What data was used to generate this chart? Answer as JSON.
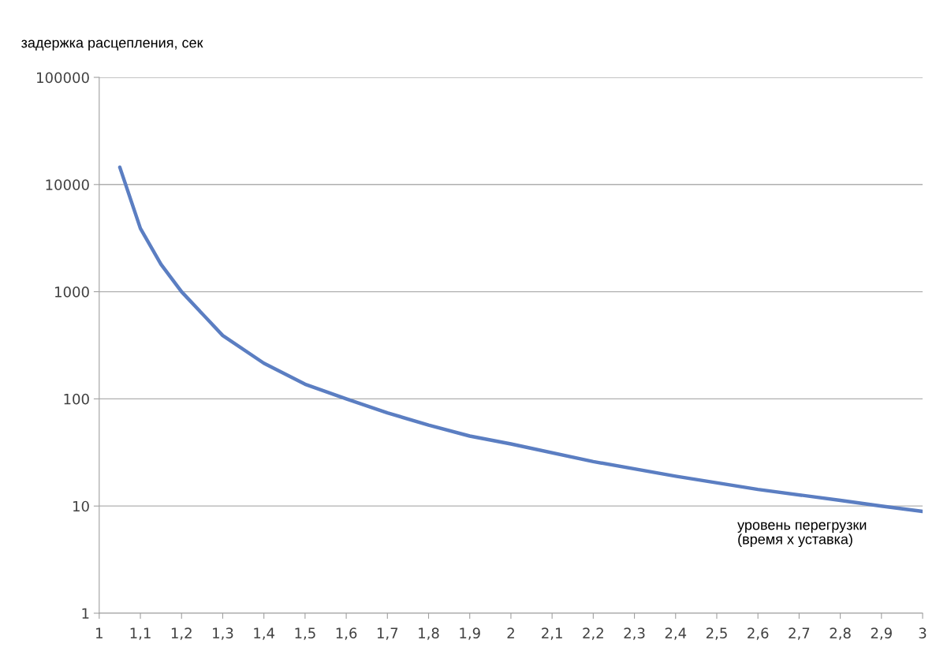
{
  "chart_data": {
    "type": "line",
    "ylabel": "задержка расцепления, сек",
    "xlabel": "уровень перегрузки\n(время х уставка)",
    "x": [
      1.05,
      1.1,
      1.15,
      1.2,
      1.3,
      1.4,
      1.5,
      1.6,
      1.7,
      1.8,
      1.9,
      2,
      2.2,
      2.4,
      2.6,
      2.8,
      2.9,
      3
    ],
    "series": [
      {
        "color": "#5b7ec2",
        "values": [
          14500,
          3900,
          1800,
          1000,
          390,
          215,
          137,
          100,
          74,
          57,
          45,
          38,
          26,
          19,
          14.3,
          11.3,
          10,
          8.9
        ]
      }
    ],
    "log": "y",
    "ylim": [
      1,
      100000
    ],
    "yticks": [
      1,
      10,
      100,
      1000,
      10000,
      100000
    ],
    "xlim": [
      1,
      3
    ],
    "xticks": [
      1,
      {
        "value": 1.1,
        "label": "1,1"
      },
      {
        "value": 1.2,
        "label": "1,2"
      },
      {
        "value": 1.3,
        "label": "1,3"
      },
      {
        "value": 1.4,
        "label": "1,4"
      },
      {
        "value": 1.5,
        "label": "1,5"
      },
      {
        "value": 1.6,
        "label": "1,6"
      },
      {
        "value": 1.7,
        "label": "1,7"
      },
      {
        "value": 1.8,
        "label": "1,8"
      },
      {
        "value": 1.9,
        "label": "1,9"
      },
      2,
      {
        "value": 2.1,
        "label": "2,1"
      },
      {
        "value": 2.2,
        "label": "2,2"
      },
      {
        "value": 2.3,
        "label": "2,3"
      },
      {
        "value": 2.4,
        "label": "2,4"
      },
      {
        "value": 2.5,
        "label": "2,5"
      },
      {
        "value": 2.6,
        "label": "2,6"
      },
      {
        "value": 2.7,
        "label": "2,7"
      },
      {
        "value": 2.8,
        "label": "2,8"
      },
      {
        "value": 2.9,
        "label": "2,9"
      },
      3
    ],
    "grid": "y",
    "marker": "none",
    "line_style": "solid"
  }
}
